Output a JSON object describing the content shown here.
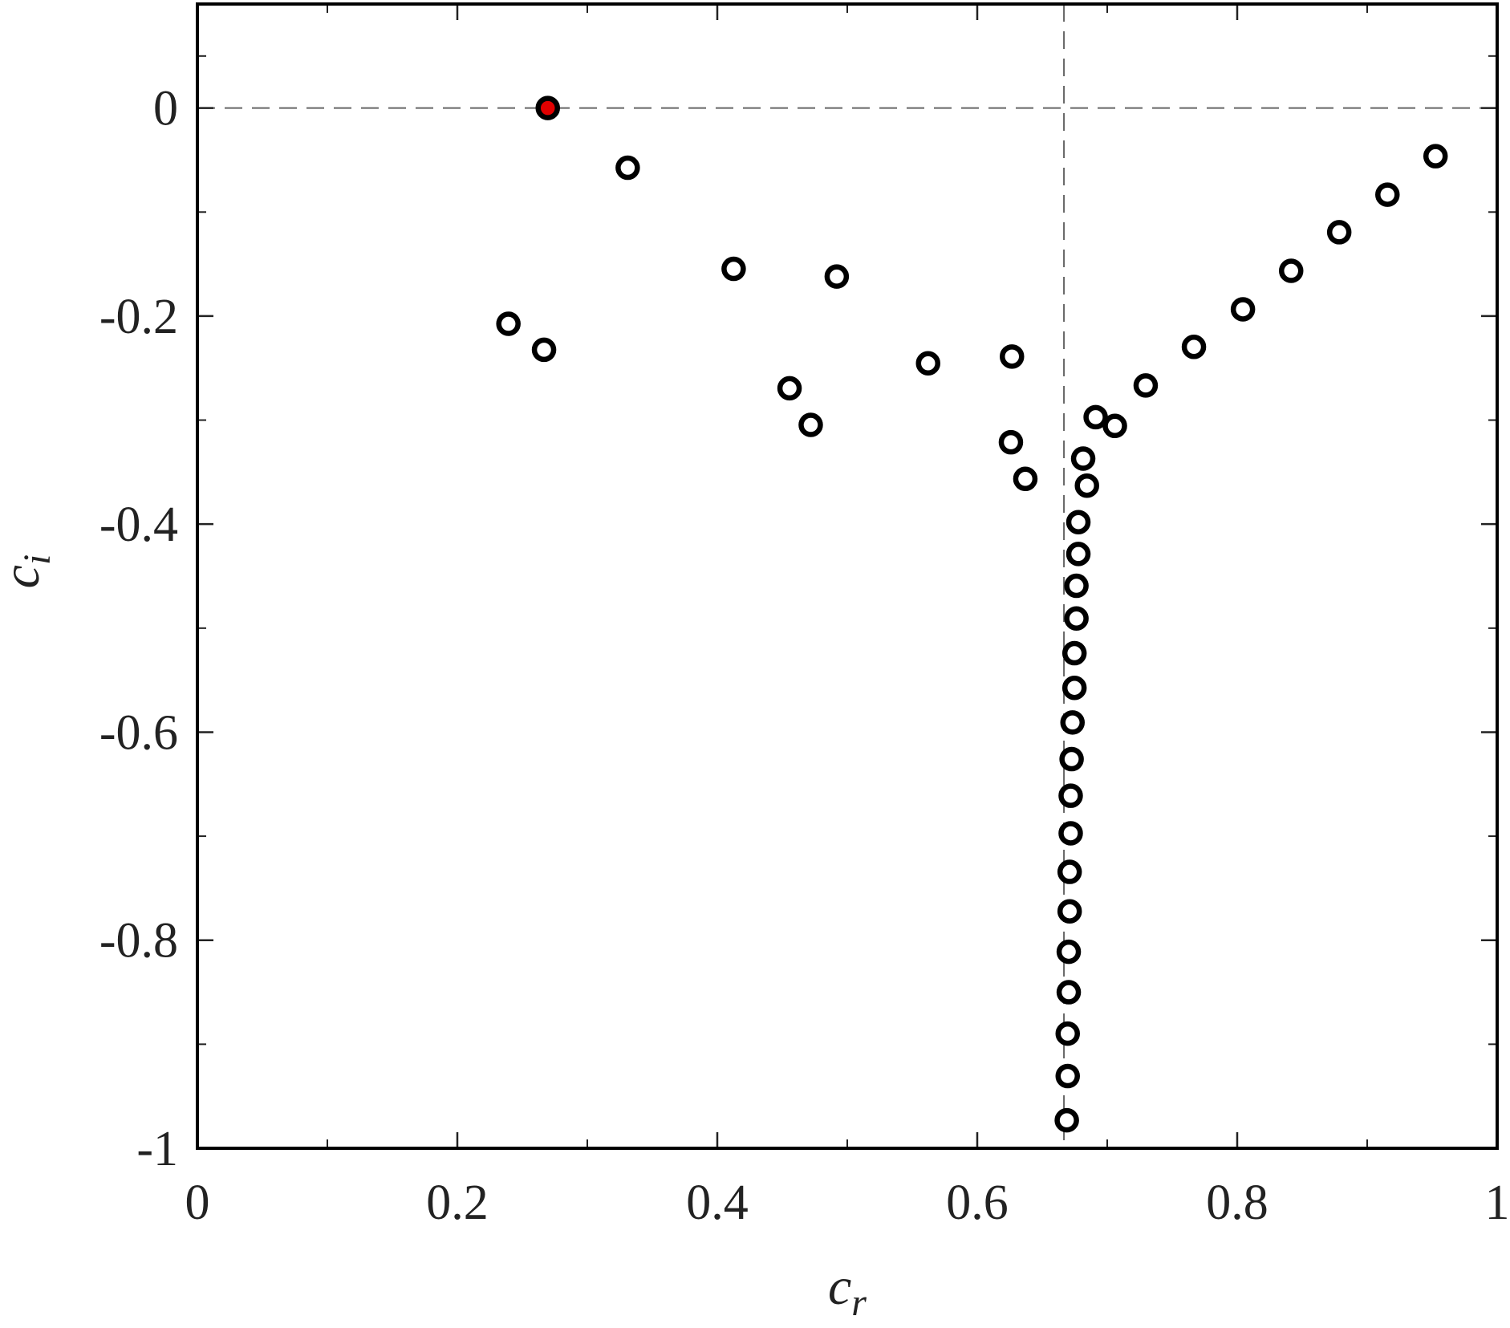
{
  "chart_data": {
    "type": "scatter",
    "xlabel": {
      "base": "c",
      "sub": "r"
    },
    "ylabel": {
      "base": "c",
      "sub": "i"
    },
    "xlim": [
      0,
      1
    ],
    "ylim": [
      -1,
      0.1
    ],
    "xticks": [
      0,
      0.2,
      0.4,
      0.6,
      0.8,
      1
    ],
    "yticks": [
      -1,
      -0.8,
      -0.6,
      -0.4,
      -0.2,
      0
    ],
    "reference_lines": {
      "x": 0.6667,
      "y": 0
    },
    "series": [
      {
        "color": "#000000",
        "fill": "#ffffff",
        "x": [
          0.3311,
          0.2393,
          0.2667,
          0.4126,
          0.4919,
          0.4556,
          0.4719,
          0.5622,
          0.6267,
          0.6259,
          0.637,
          0.6815,
          0.6844,
          0.6911,
          0.7059,
          0.7296,
          0.7667,
          0.8044,
          0.8415,
          0.8785,
          0.9156,
          0.9526,
          0.6778,
          0.6778,
          0.6763,
          0.6763,
          0.6748,
          0.6748,
          0.6733,
          0.6726,
          0.6719,
          0.6719,
          0.6711,
          0.6711,
          0.6704,
          0.6704,
          0.6696,
          0.6696,
          0.6689
        ],
        "values": [
          -0.0574,
          -0.2074,
          -0.2324,
          -0.1546,
          -0.162,
          -0.2694,
          -0.3046,
          -0.2454,
          -0.2389,
          -0.3213,
          -0.3565,
          -0.337,
          -0.363,
          -0.2972,
          -0.3056,
          -0.2667,
          -0.2296,
          -0.1935,
          -0.1565,
          -0.1194,
          -0.0833,
          -0.0463,
          -0.3981,
          -0.4287,
          -0.4593,
          -0.4907,
          -0.5241,
          -0.5574,
          -0.5907,
          -0.6259,
          -0.6611,
          -0.6972,
          -0.7343,
          -0.7722,
          -0.8111,
          -0.85,
          -0.8898,
          -0.9306,
          -0.9731
        ]
      },
      {
        "color": "#000000",
        "fill": "#e00000",
        "x": [
          0.2696
        ],
        "values": [
          0
        ]
      }
    ]
  }
}
